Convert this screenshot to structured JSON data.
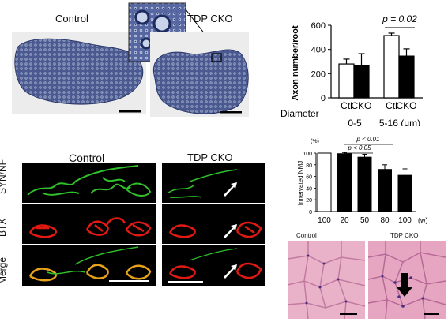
{
  "panel_a": {
    "control_label": "Control",
    "cko_label": "TDP CKO"
  },
  "panel_c": {
    "control_label": "Control",
    "cko_label": "TDP CKO",
    "row_labels": [
      "SYN/NF",
      "BTX",
      "Merge"
    ]
  },
  "panel_e": {
    "control_label": "Control",
    "cko_label": "TDP CKO"
  },
  "colors": {
    "nerve_stain": "#3f4f86",
    "syn_green": "#2fc02a",
    "btx_red": "#e01a12",
    "merge_orange": "#e6a21a",
    "he_pink": "#e8a6c2"
  },
  "chart_data": [
    {
      "type": "bar",
      "ylabel": "Axon number/root",
      "ylim": [
        0,
        600
      ],
      "yticks": [
        0,
        200,
        400,
        600
      ],
      "x_prefix": "Diameter",
      "groups": [
        {
          "label": "0-5",
          "categories": [
            "Ctl",
            "CKO"
          ],
          "values": [
            280,
            270
          ],
          "errors": [
            40,
            95
          ]
        },
        {
          "label": "5-16 (μm)",
          "categories": [
            "Ctl",
            "CKO"
          ],
          "values": [
            515,
            345
          ],
          "errors": [
            20,
            60
          ]
        }
      ],
      "series_colors": [
        "#ffffff",
        "#000000"
      ],
      "annotation": "p = 0.02"
    },
    {
      "type": "bar",
      "ylabel": "Innervated NMJ",
      "y_unit": "(%)",
      "ylim": [
        0,
        100
      ],
      "yticks": [
        0,
        20,
        40,
        60,
        80,
        100
      ],
      "xlabel_unit": "(w)",
      "categories": [
        "100",
        "20",
        "50",
        "80",
        "100"
      ],
      "values": [
        100,
        99,
        93,
        72,
        62
      ],
      "errors": [
        0,
        2,
        5,
        8,
        11
      ],
      "bar_colors": [
        "#ffffff",
        "#000000",
        "#000000",
        "#000000",
        "#000000"
      ],
      "annotations": [
        "p < 0.01",
        "p < 0.05"
      ]
    }
  ]
}
